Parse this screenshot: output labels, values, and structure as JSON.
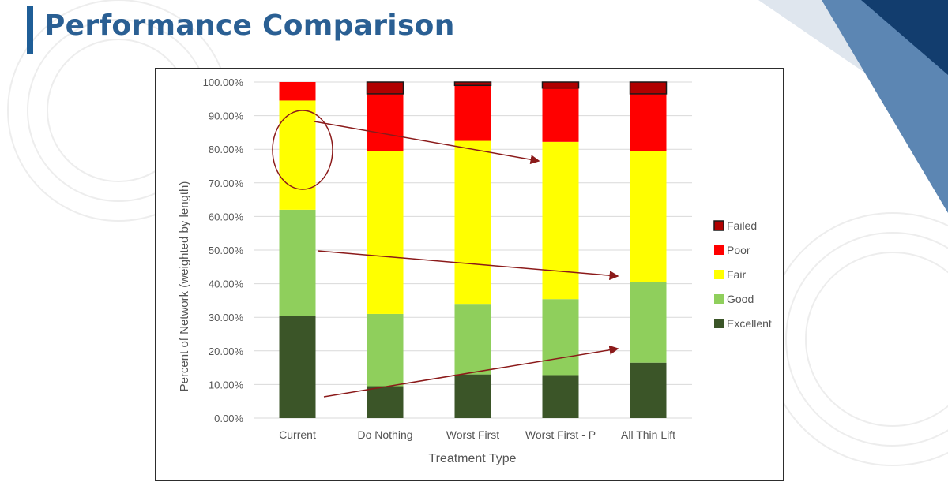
{
  "slide": {
    "title": "Performance Comparison"
  },
  "theme": {
    "title_color": "#2a5f93",
    "accent_dark": "#123d6e",
    "accent_light": "#5c86b3",
    "arrow_color": "#8b1a1a"
  },
  "chart_data": {
    "type": "bar",
    "stacked": true,
    "xlabel": "Treatment Type",
    "ylabel": "Percent of Network (weighted by length)",
    "ylim": [
      0,
      100
    ],
    "yticks": [
      "0.00%",
      "10.00%",
      "20.00%",
      "30.00%",
      "40.00%",
      "50.00%",
      "60.00%",
      "70.00%",
      "80.00%",
      "90.00%",
      "100.00%"
    ],
    "grid": true,
    "legend_position": "right",
    "categories": [
      "Current",
      "Do Nothing",
      "Worst First",
      "Worst First - P",
      "All Thin Lift"
    ],
    "series": [
      {
        "name": "Excellent",
        "color": "#3b5528",
        "values": [
          30.5,
          9.5,
          13,
          12.8,
          16.5
        ]
      },
      {
        "name": "Good",
        "color": "#8fcf5c",
        "values": [
          31.5,
          21.5,
          21,
          22.6,
          24
        ]
      },
      {
        "name": "Fair",
        "color": "#ffff00",
        "values": [
          32.5,
          48.5,
          48.5,
          46.8,
          39
        ]
      },
      {
        "name": "Poor",
        "color": "#ff0000",
        "values": [
          5.5,
          17,
          16.5,
          16,
          17
        ]
      },
      {
        "name": "Failed",
        "color": "#b00000",
        "values": [
          0,
          3.5,
          1,
          1.8,
          3.5
        ]
      }
    ]
  }
}
